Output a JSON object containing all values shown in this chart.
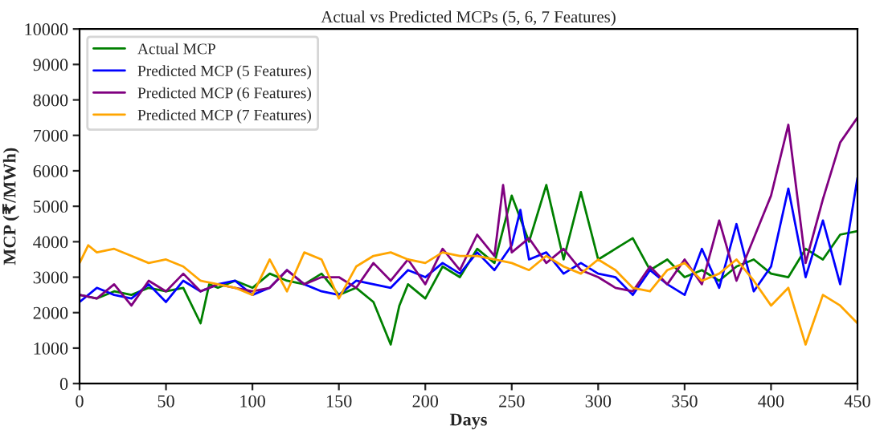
{
  "chart_data": {
    "type": "line",
    "title": "Actual vs Predicted MCPs (5, 6, 7 Features)",
    "xlabel": "Days",
    "ylabel": "MCP (₹/MWh)",
    "xlim": [
      0,
      450
    ],
    "xticks": [
      0,
      50,
      100,
      150,
      200,
      250,
      300,
      350,
      400,
      450
    ],
    "ylim": [
      0,
      10000
    ],
    "yticks": [
      0,
      1000,
      2000,
      3000,
      4000,
      5000,
      6000,
      7000,
      8000,
      9000,
      10000
    ],
    "legend": "top left",
    "grid": false,
    "series": [
      {
        "name": "Actual MCP",
        "color": "#008000",
        "x": [
          0,
          10,
          20,
          30,
          40,
          50,
          60,
          70,
          75,
          80,
          90,
          100,
          110,
          120,
          130,
          140,
          150,
          160,
          170,
          180,
          185,
          190,
          200,
          210,
          220,
          230,
          240,
          250,
          260,
          270,
          280,
          290,
          300,
          310,
          320,
          330,
          340,
          350,
          360,
          370,
          380,
          390,
          400,
          410,
          420,
          430,
          440,
          450
        ],
        "values": [
          2500,
          2400,
          2600,
          2500,
          2700,
          2600,
          2700,
          1700,
          2800,
          2700,
          2900,
          2700,
          3100,
          2900,
          2800,
          3100,
          2500,
          2700,
          2300,
          1100,
          2200,
          2800,
          2400,
          3300,
          3000,
          3800,
          3400,
          5300,
          4000,
          5600,
          3500,
          5400,
          3500,
          3800,
          4100,
          3200,
          3500,
          3000,
          3200,
          2900,
          3300,
          3500,
          3100,
          3000,
          3800,
          3500,
          4200,
          4300
        ]
      },
      {
        "name": "Predicted MCP (5 Features)",
        "color": "#0000ff",
        "x": [
          0,
          10,
          20,
          30,
          40,
          50,
          60,
          70,
          80,
          90,
          100,
          110,
          120,
          130,
          140,
          150,
          160,
          170,
          180,
          190,
          200,
          210,
          220,
          230,
          240,
          250,
          255,
          260,
          270,
          280,
          290,
          300,
          310,
          320,
          330,
          340,
          350,
          360,
          370,
          380,
          390,
          400,
          410,
          420,
          430,
          440,
          450
        ],
        "values": [
          2300,
          2700,
          2500,
          2400,
          2800,
          2300,
          2900,
          2600,
          2800,
          2900,
          2500,
          2700,
          3200,
          2800,
          2600,
          2500,
          2900,
          2800,
          2700,
          3200,
          3000,
          3400,
          3100,
          3700,
          3200,
          3900,
          4900,
          3500,
          3700,
          3100,
          3400,
          3100,
          3000,
          2500,
          3200,
          2800,
          2500,
          3800,
          2700,
          4500,
          2600,
          3300,
          5500,
          3000,
          4600,
          2800,
          5800
        ]
      },
      {
        "name": "Predicted MCP (6 Features)",
        "color": "#800080",
        "x": [
          0,
          10,
          20,
          30,
          40,
          50,
          60,
          70,
          80,
          90,
          100,
          110,
          120,
          130,
          140,
          150,
          160,
          170,
          180,
          190,
          200,
          210,
          220,
          230,
          240,
          245,
          250,
          260,
          270,
          280,
          290,
          300,
          310,
          320,
          330,
          340,
          350,
          360,
          370,
          380,
          390,
          400,
          410,
          420,
          430,
          440,
          450
        ],
        "values": [
          2500,
          2400,
          2800,
          2200,
          2900,
          2600,
          3100,
          2600,
          2800,
          2700,
          2600,
          2700,
          3200,
          2800,
          3000,
          3000,
          2700,
          3400,
          2900,
          3500,
          2800,
          3800,
          3200,
          4200,
          3600,
          5600,
          3700,
          4100,
          3400,
          3800,
          3200,
          3000,
          2700,
          2600,
          3300,
          2800,
          3500,
          2800,
          4600,
          2900,
          4100,
          5300,
          7300,
          3400,
          5200,
          6800,
          7500
        ]
      },
      {
        "name": "Predicted MCP (7 Features)",
        "color": "#ffa500",
        "x": [
          0,
          5,
          10,
          20,
          30,
          40,
          50,
          60,
          70,
          80,
          90,
          100,
          110,
          120,
          130,
          140,
          150,
          160,
          170,
          180,
          190,
          200,
          210,
          220,
          230,
          240,
          250,
          260,
          270,
          280,
          290,
          300,
          310,
          320,
          330,
          340,
          350,
          360,
          370,
          380,
          390,
          400,
          410,
          420,
          430,
          440,
          450
        ],
        "values": [
          3400,
          3900,
          3700,
          3800,
          3600,
          3400,
          3500,
          3300,
          2900,
          2800,
          2700,
          2500,
          3500,
          2600,
          3700,
          3500,
          2400,
          3300,
          3600,
          3700,
          3500,
          3400,
          3700,
          3600,
          3600,
          3500,
          3400,
          3200,
          3600,
          3300,
          3100,
          3500,
          3200,
          2700,
          2600,
          3200,
          3400,
          2900,
          3100,
          3500,
          2900,
          2200,
          2700,
          1100,
          2500,
          2200,
          1700
        ]
      }
    ]
  }
}
